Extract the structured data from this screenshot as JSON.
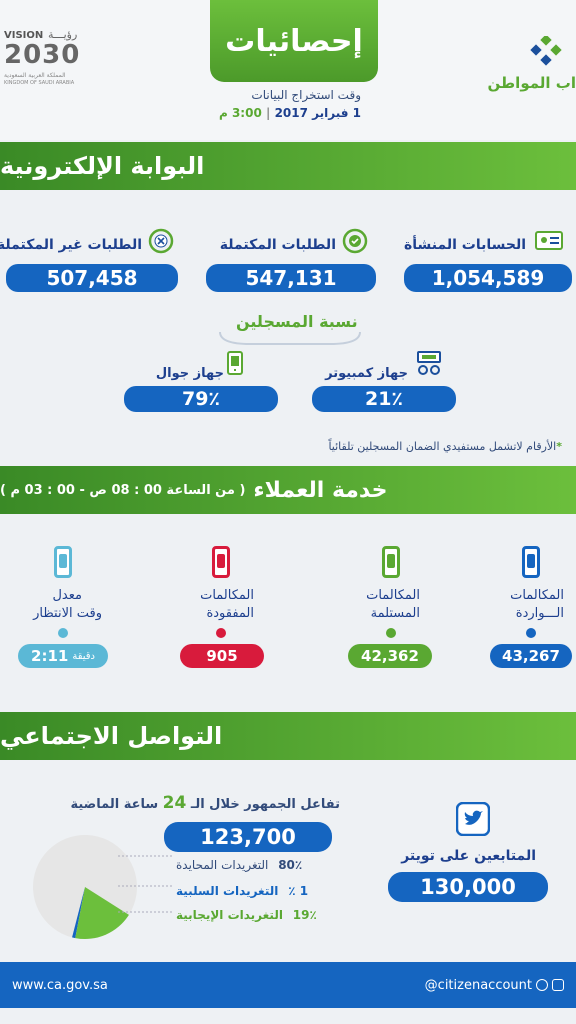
{
  "header": {
    "title": "إحصائيات",
    "extract_label": "وقت استخراج البيانات",
    "date": "1 فبراير 2017",
    "time": "3:00 م",
    "logo_right_text": "اب المواطن",
    "vision_text": "VISION",
    "vision_year": "2030",
    "vision_arabic": "رؤيـــة",
    "vision_sub": "المملكة العربية السعودية",
    "vision_sub_en": "KINGDOM OF SAUDI ARABIA"
  },
  "portal": {
    "title": "البوابة الإلكترونية",
    "stats": [
      {
        "label": "الحسابات المنشأة",
        "value": "1,054,589",
        "icon": "id-card-icon"
      },
      {
        "label": "الطلبات المكتملة",
        "value": "547,131",
        "icon": "check-circle-icon"
      },
      {
        "label": "الطلبات غير المكتملة",
        "value": "507,458",
        "icon": "x-circle-icon"
      }
    ],
    "registered_label": "نسبة المسجلين",
    "devices": [
      {
        "label": "جهاز كمبيوتر",
        "value": "21٪",
        "icon": "computer-icon"
      },
      {
        "label": "جهاز جوال",
        "value": "79٪",
        "icon": "mobile-icon"
      }
    ],
    "note": "الأرقام لاتشمل مستفيدي الضمان المسجلين تلقائياً"
  },
  "customer": {
    "title": "خدمة العملاء",
    "hours": "( من الساعة 00 : 08 ص - 00 : 03 م )",
    "items": [
      {
        "line1": "المكالمات",
        "line2": "الـــواردة",
        "value": "43,267",
        "color": "#1565c0"
      },
      {
        "line1": "المكالمات",
        "line2": "المستلمة",
        "value": "42,362",
        "color": "#5aa832"
      },
      {
        "line1": "المكالمات",
        "line2": "المفقودة",
        "value": "905",
        "color": "#d81b3c"
      },
      {
        "line1": "معدل",
        "line2": "وقت الانتظار",
        "value": "2:11",
        "unit": "دقيقة",
        "color": "#5bb8d6"
      }
    ]
  },
  "social": {
    "title": "التواصل الاجتماعي",
    "followers_label": "المتابعين على تويتر",
    "followers_value": "130,000",
    "engagement_title_pre": "تفاعل الجمهور خلال الـ",
    "engagement_hours": "24",
    "engagement_title_post": "ساعة الماضية",
    "engagement_value": "123,700",
    "breakdown": [
      {
        "label": "التغريدات المحايدة",
        "pct": "80٪",
        "color": "#e6e6e6"
      },
      {
        "label": "التغريدات السلبية",
        "pct": "1 ٪",
        "color": "#1565c0"
      },
      {
        "label": "التغريدات الإيجابية",
        "pct": "19٪",
        "color": "#6cbf3c"
      }
    ],
    "pie": {
      "neutral": 80,
      "negative": 1,
      "positive": 19
    }
  },
  "footer": {
    "website": "www.ca.gov.sa",
    "handle": "@citizenaccount"
  }
}
